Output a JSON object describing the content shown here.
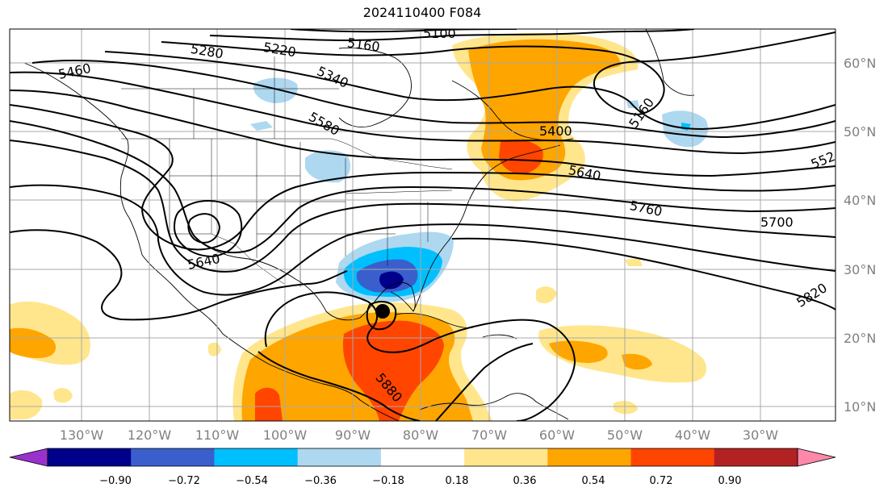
{
  "title": "2024110400 F084",
  "longitude_labels": [
    "130°W",
    "120°W",
    "110°W",
    "100°W",
    "90°W",
    "80°W",
    "70°W",
    "60°W",
    "50°W",
    "40°W",
    "30°W"
  ],
  "latitude_labels": [
    "60°N",
    "50°N",
    "40°N",
    "30°N",
    "20°N",
    "10°N"
  ],
  "contour_labels": [
    "5100",
    "5160",
    "5220",
    "5280",
    "5340",
    "5460",
    "5580",
    "5400",
    "5640",
    "5640",
    "5760",
    "5700",
    "5820",
    "5880",
    "5160",
    "552"
  ],
  "colorbar": {
    "tick_labels": [
      "−0.90",
      "−0.72",
      "−0.54",
      "−0.36",
      "−0.18",
      "0.18",
      "0.36",
      "0.54",
      "0.72",
      "0.90"
    ],
    "colors": [
      "#9932cc",
      "#00008b",
      "#3a5fcd",
      "#00bfff",
      "#add8f0",
      "#ffffff",
      "#ffe68c",
      "#ffa500",
      "#ff4500",
      "#b22222",
      "#ff88aa"
    ]
  },
  "colors": {
    "light_blue": "#add8f0",
    "blue": "#00bfff",
    "medium_blue": "#3a5fcd",
    "dark_blue": "#00008b",
    "light_yellow": "#ffe68c",
    "orange": "#ffa500",
    "red_orange": "#ff4500",
    "grid": "#a9a9a9",
    "contour": "#000000"
  },
  "low_marker": "storm-center-dot"
}
